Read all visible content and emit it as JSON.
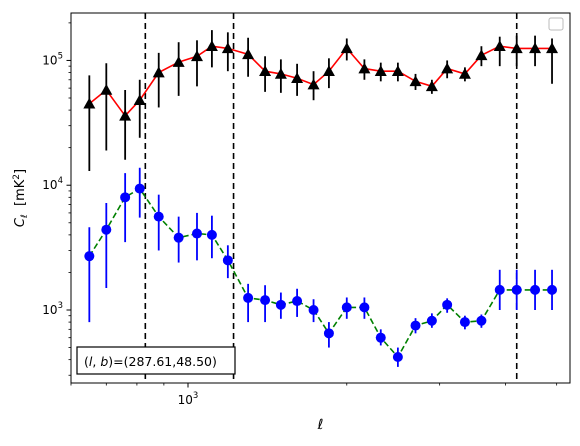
{
  "chart_data": {
    "type": "scatter",
    "xscale": "log",
    "yscale": "log",
    "xlim": [
      600,
      5300
    ],
    "ylim": [
      260,
      240000
    ],
    "x_ticks": [
      {
        "value": 1000,
        "base": "10",
        "exp": "3"
      }
    ],
    "y_ticks": [
      {
        "value": 1000,
        "base": "10",
        "exp": "3"
      },
      {
        "value": 10000,
        "base": "10",
        "exp": "4"
      },
      {
        "value": 100000,
        "base": "10",
        "exp": "5"
      }
    ],
    "xlabel": "ℓ",
    "ylabel": {
      "symbol": "C",
      "subscript": "ℓ",
      "unit_prefix": "[mK",
      "unit_sup": "2",
      "unit_suffix": "]"
    },
    "annotation": "(l, b)=(287.61,48.50)",
    "annotation_parts": {
      "l": "l",
      "b": "b",
      "values": "=(287.61,48.50)"
    },
    "legend": {
      "placement": "upper right",
      "entries": []
    },
    "vlines": [
      830,
      1220,
      4200
    ],
    "x": [
      650,
      700,
      760,
      810,
      880,
      960,
      1040,
      1110,
      1190,
      1300,
      1400,
      1500,
      1610,
      1730,
      1850,
      2000,
      2160,
      2320,
      2500,
      2700,
      2900,
      3100,
      3350,
      3600,
      3900,
      4200,
      4550,
      4900
    ],
    "series": [
      {
        "marker": "triangle",
        "color": "#000000",
        "line_color": "#ff0000",
        "line_style": "solid",
        "values": [
          45000,
          58000,
          36000,
          48000,
          80000,
          97000,
          108000,
          130000,
          125000,
          112000,
          82000,
          78000,
          72000,
          64000,
          82000,
          125000,
          86000,
          82000,
          82000,
          68000,
          62000,
          86000,
          78000,
          110000,
          130000,
          125000,
          125000,
          125000
        ],
        "err_low": [
          13000,
          19000,
          16000,
          24000,
          42000,
          52000,
          62000,
          88000,
          82000,
          74000,
          56000,
          55000,
          52000,
          48000,
          60000,
          100000,
          70000,
          68000,
          68000,
          58000,
          54000,
          72000,
          68000,
          90000,
          90000,
          90000,
          90000,
          65000
        ],
        "err_high": [
          76000,
          95000,
          58000,
          70000,
          115000,
          140000,
          145000,
          175000,
          168000,
          152000,
          108000,
          102000,
          94000,
          82000,
          104000,
          150000,
          102000,
          96000,
          96000,
          78000,
          70000,
          100000,
          88000,
          130000,
          155000,
          158000,
          158000,
          150000
        ]
      },
      {
        "marker": "circle",
        "color": "#0000ff",
        "line_color": "#008000",
        "line_style": "dashed",
        "values": [
          2700,
          4400,
          8000,
          9400,
          5600,
          3800,
          4100,
          4000,
          2500,
          1250,
          1200,
          1100,
          1180,
          1000,
          650,
          1050,
          1050,
          600,
          420,
          750,
          820,
          1100,
          800,
          820,
          1450,
          1450,
          1450,
          1450
        ],
        "err_low": [
          800,
          1500,
          3500,
          5500,
          3000,
          2400,
          2500,
          2600,
          1800,
          800,
          800,
          850,
          880,
          800,
          500,
          850,
          850,
          520,
          350,
          650,
          720,
          950,
          700,
          720,
          1000,
          1000,
          1000,
          1000
        ],
        "err_high": [
          4600,
          7200,
          12500,
          13800,
          8400,
          5600,
          6000,
          5700,
          3300,
          1620,
          1580,
          1380,
          1480,
          1220,
          800,
          1260,
          1260,
          700,
          500,
          860,
          940,
          1240,
          900,
          920,
          2100,
          2100,
          2100,
          2100
        ]
      }
    ]
  }
}
